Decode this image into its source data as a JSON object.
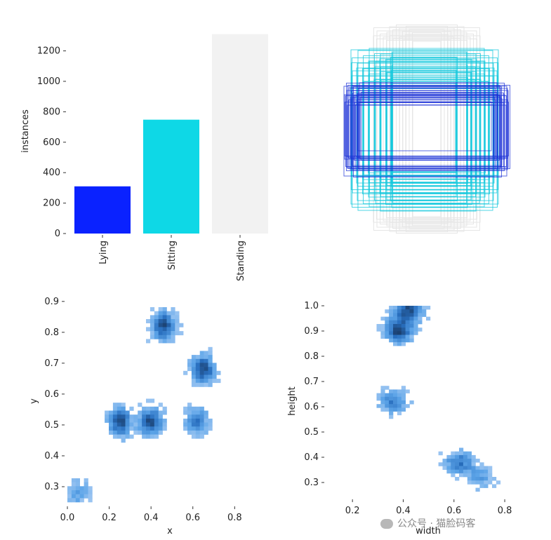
{
  "chart_data": [
    {
      "type": "bar",
      "categories": [
        "Lying",
        "Sitting",
        "Standing"
      ],
      "values": [
        310,
        748,
        1310
      ],
      "colors": [
        "#0a22ff",
        "#0ed8e6",
        "#f2f2f2"
      ],
      "ylabel": "instances",
      "ylim": [
        0,
        1350
      ],
      "yticks": [
        0,
        200,
        400,
        600,
        800,
        1000,
        1200
      ]
    },
    {
      "type": "other",
      "description_of_marks": "overlaid bounding boxes, color by class",
      "colors": [
        "#1a2fd6",
        "#14c8dc",
        "#e6e6e6"
      ]
    },
    {
      "type": "heatmap",
      "xlabel": "x",
      "ylabel": "y",
      "xlim": [
        0,
        0.95
      ],
      "ylim": [
        0.25,
        0.92
      ],
      "xticks": [
        "0.0",
        "0.2",
        "0.4",
        "0.6",
        "0.8"
      ],
      "yticks": [
        "0.3",
        "0.4",
        "0.5",
        "0.6",
        "0.7",
        "0.8",
        "0.9"
      ],
      "clusters": [
        {
          "x": 0.46,
          "y": 0.82,
          "strength": "high"
        },
        {
          "x": 0.65,
          "y": 0.68,
          "strength": "high"
        },
        {
          "x": 0.25,
          "y": 0.51,
          "strength": "high"
        },
        {
          "x": 0.4,
          "y": 0.51,
          "strength": "high"
        },
        {
          "x": 0.62,
          "y": 0.51,
          "strength": "medium"
        },
        {
          "x": 0.05,
          "y": 0.28,
          "strength": "low"
        }
      ]
    },
    {
      "type": "heatmap",
      "xlabel": "width",
      "ylabel": "height",
      "xlim": [
        0.1,
        0.88
      ],
      "ylim": [
        0.25,
        1.0
      ],
      "xticks": [
        "0.2",
        "0.4",
        "0.6",
        "0.8"
      ],
      "yticks": [
        "0.3",
        "0.4",
        "0.5",
        "0.6",
        "0.7",
        "0.8",
        "0.9",
        "1.0"
      ],
      "clusters": [
        {
          "x": 0.42,
          "y": 0.98,
          "strength": "high"
        },
        {
          "x": 0.38,
          "y": 0.9,
          "strength": "high"
        },
        {
          "x": 0.36,
          "y": 0.62,
          "strength": "medium"
        },
        {
          "x": 0.62,
          "y": 0.38,
          "strength": "medium"
        },
        {
          "x": 0.7,
          "y": 0.32,
          "strength": "low"
        }
      ]
    }
  ],
  "watermark": "公众号 · 猫脸码客"
}
